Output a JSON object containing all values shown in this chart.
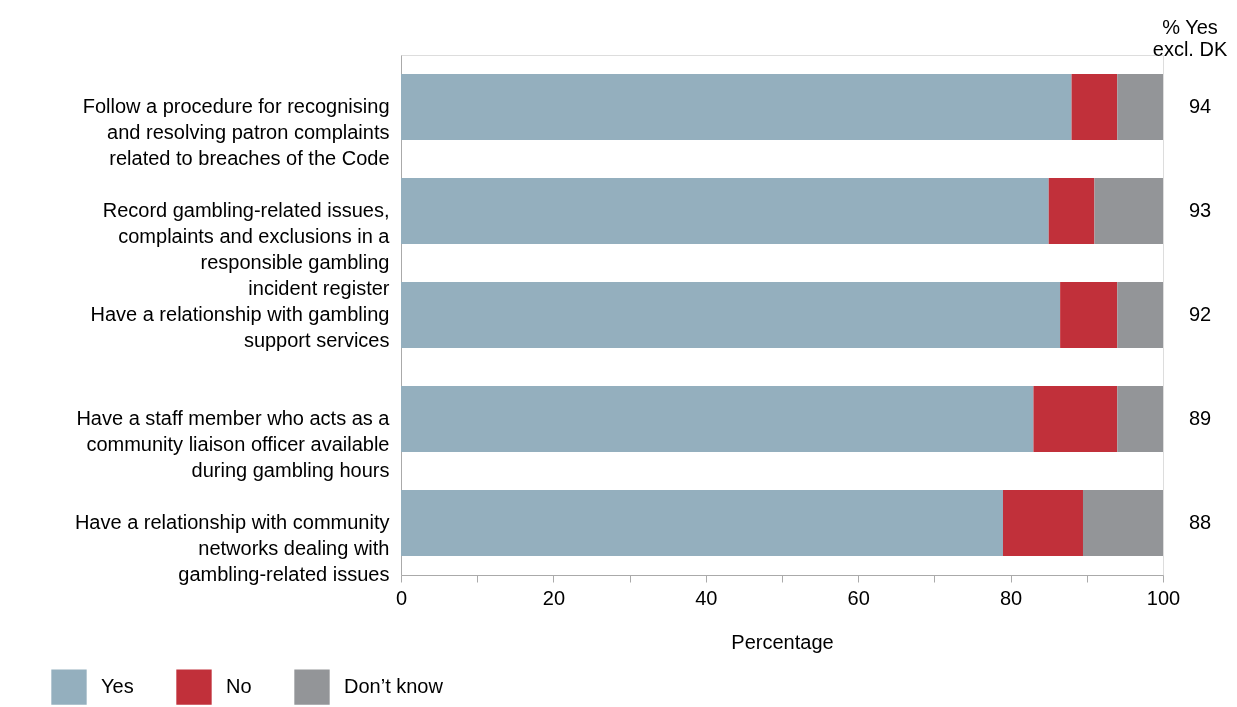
{
  "chart_data": {
    "type": "bar",
    "orientation": "horizontal",
    "stacked": true,
    "categories": [
      "Follow a procedure for recognising\nand resolving patron complaints\nrelated to breaches of the Code",
      "Record gambling-related issues,\ncomplaints and exclusions in a\nresponsible gambling\nincident register",
      "Have a relationship with gambling\nsupport services",
      "Have a staff member who acts as a\ncommunity liaison officer available\nduring gambling hours",
      "Have a relationship with community\nnetworks dealing with\ngambling-related issues"
    ],
    "series": [
      {
        "name": "Yes",
        "color": "#94afbe",
        "values": [
          88,
          85,
          86.5,
          83,
          79
        ]
      },
      {
        "name": "No",
        "color": "#c1303a",
        "values": [
          6,
          6,
          7.5,
          11,
          10.5
        ]
      },
      {
        "name": "Don’t know",
        "color": "#939598",
        "values": [
          6,
          9,
          6,
          6,
          10.5
        ]
      }
    ],
    "xlabel": "Percentage",
    "xlim": [
      0,
      100
    ],
    "xticks": [
      0,
      {
        "value": 10,
        "label": null
      },
      20,
      {
        "value": 30,
        "label": null
      },
      40,
      {
        "value": 50,
        "label": null
      },
      60,
      {
        "value": 70,
        "label": null
      },
      80,
      {
        "value": 90,
        "label": null
      },
      100
    ],
    "grid": false,
    "legend": "bottom left",
    "annotations": [
      "% Yes\nexcl. DK",
      "94",
      "93",
      "92",
      "89",
      "88"
    ]
  }
}
